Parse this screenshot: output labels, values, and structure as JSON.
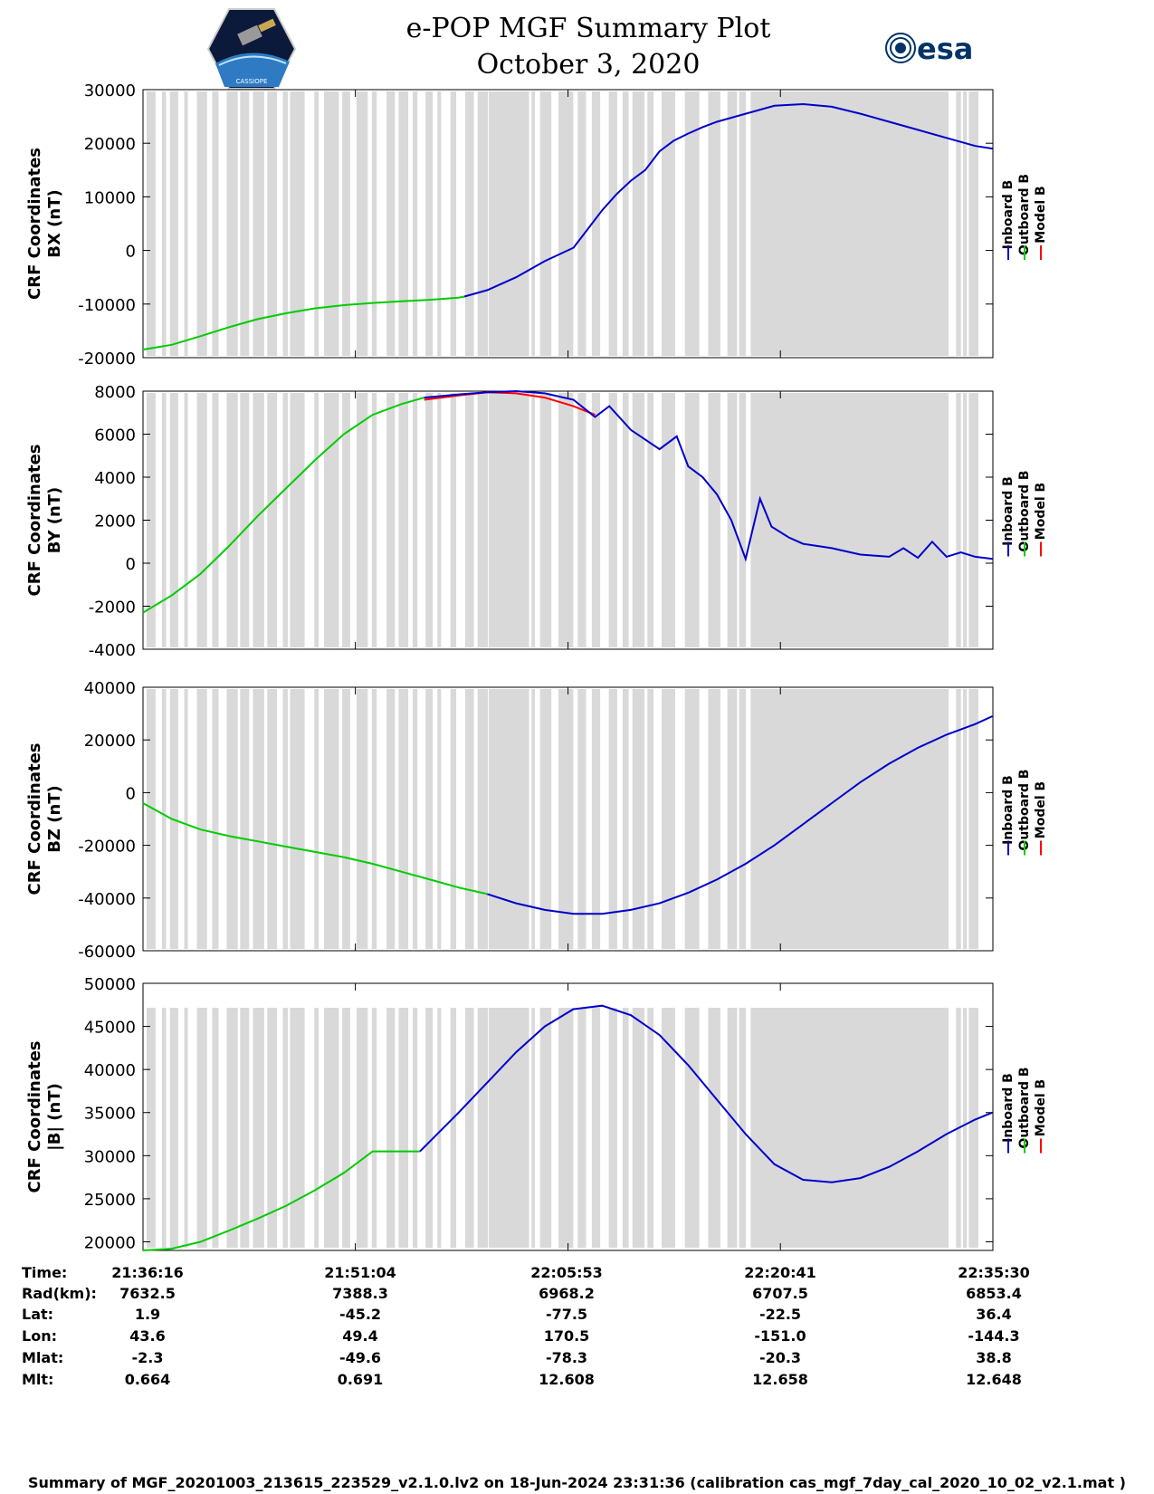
{
  "header": {
    "title_line1": "e-POP MGF Summary Plot",
    "title_line2": "October 3, 2020",
    "esa_logo_text": "esa",
    "cassiope_logo_text": "CASSIOPE"
  },
  "colors": {
    "inboard": "#0000cc",
    "outboard": "#00cc00",
    "model": "#ff0000",
    "gap_shading": "#d9d9d9"
  },
  "legend": [
    "Inboard B",
    "Outboard B",
    "Model B"
  ],
  "chart_data": [
    {
      "type": "line",
      "ylabel_line1": "CRF Coordinates",
      "ylabel_line2": "BX (nT)",
      "ylim": [
        -20000,
        30000
      ],
      "yticks": [
        -20000,
        -10000,
        0,
        10000,
        20000,
        30000
      ],
      "x_minutes": [
        0,
        2,
        4,
        6,
        8,
        10,
        12,
        14,
        16,
        18,
        20,
        22,
        24,
        26,
        28,
        30,
        32,
        34,
        36,
        38,
        40,
        42,
        44,
        46,
        48,
        50,
        52,
        54,
        56,
        58,
        59.2
      ],
      "series": [
        {
          "name": "Outboard B",
          "color_key": "outboard",
          "x": [
            0,
            2,
            4,
            6,
            8,
            10,
            12,
            14,
            16,
            18,
            20,
            22,
            22.4
          ],
          "values": [
            -18500,
            -17600,
            -16000,
            -14300,
            -12800,
            -11700,
            -10800,
            -10200,
            -9800,
            -9500,
            -9200,
            -8800,
            -8600
          ]
        },
        {
          "name": "Inboard B",
          "color_key": "inboard",
          "x": [
            22.4,
            24,
            26,
            28,
            30,
            31,
            32,
            33,
            34,
            35,
            36,
            37,
            38,
            39,
            40,
            42,
            44,
            46,
            48,
            50,
            52,
            54,
            56,
            58,
            59.2
          ],
          "values": [
            -8600,
            -7400,
            -5000,
            -2000,
            500,
            4000,
            7500,
            10500,
            13000,
            15000,
            18500,
            20500,
            21800,
            23000,
            24000,
            25500,
            27000,
            27300,
            26800,
            25500,
            24000,
            22500,
            21000,
            19500,
            19000
          ]
        }
      ]
    },
    {
      "type": "line",
      "ylabel_line1": "CRF Coordinates",
      "ylabel_line2": "BY (nT)",
      "ylim": [
        -4000,
        8000
      ],
      "yticks": [
        -4000,
        -2000,
        0,
        2000,
        4000,
        6000,
        8000
      ],
      "series": [
        {
          "name": "Outboard B",
          "color_key": "outboard",
          "x": [
            0,
            2,
            4,
            6,
            8,
            10,
            12,
            14,
            16,
            18,
            19.6
          ],
          "values": [
            -2300,
            -1500,
            -500,
            800,
            2200,
            3500,
            4800,
            6000,
            6900,
            7400,
            7700
          ]
        },
        {
          "name": "Model B",
          "color_key": "model",
          "x": [
            19.6,
            22,
            24,
            26,
            28,
            30,
            31.5
          ],
          "values": [
            7600,
            7800,
            7950,
            7900,
            7700,
            7300,
            6900
          ]
        },
        {
          "name": "Inboard B",
          "color_key": "inboard",
          "x": [
            19.6,
            22,
            24,
            26,
            28,
            30,
            31.5,
            32.5,
            34,
            36,
            37.2,
            38,
            39,
            40,
            41,
            42,
            43,
            43.8,
            45,
            46,
            48,
            50,
            52,
            53,
            54,
            55,
            56,
            57,
            58,
            59.2
          ],
          "values": [
            7700,
            7850,
            7950,
            8000,
            7900,
            7600,
            6800,
            7300,
            6200,
            5300,
            5900,
            4500,
            4000,
            3200,
            2000,
            200,
            3000,
            1700,
            1200,
            900,
            700,
            400,
            300,
            700,
            250,
            1000,
            300,
            500,
            300,
            200
          ]
        }
      ]
    },
    {
      "type": "line",
      "ylabel_line1": "CRF Coordinates",
      "ylabel_line2": "BZ (nT)",
      "ylim": [
        -60000,
        40000
      ],
      "yticks": [
        -60000,
        -40000,
        -20000,
        0,
        20000,
        40000
      ],
      "series": [
        {
          "name": "Outboard B",
          "color_key": "outboard",
          "x": [
            0,
            2,
            4,
            6,
            8,
            10,
            12,
            14,
            16,
            18,
            20,
            22,
            24
          ],
          "values": [
            -4000,
            -10000,
            -14000,
            -16500,
            -18500,
            -20500,
            -22500,
            -24500,
            -27000,
            -30000,
            -33000,
            -36000,
            -38500
          ]
        },
        {
          "name": "Inboard B",
          "color_key": "inboard",
          "x": [
            24,
            26,
            28,
            30,
            32,
            34,
            36,
            38,
            40,
            42,
            44,
            46,
            48,
            50,
            52,
            54,
            56,
            58,
            59.2
          ],
          "values": [
            -38500,
            -42000,
            -44500,
            -46000,
            -46000,
            -44500,
            -42000,
            -38000,
            -33000,
            -27000,
            -20000,
            -12000,
            -4000,
            4000,
            11000,
            17000,
            22000,
            26000,
            29000
          ]
        }
      ]
    },
    {
      "type": "line",
      "ylabel_line1": "CRF Coordinates",
      "ylabel_line2": "|B| (nT)",
      "ylim": [
        19000,
        50000
      ],
      "yticks": [
        20000,
        25000,
        30000,
        35000,
        40000,
        45000,
        50000
      ],
      "series": [
        {
          "name": "Outboard B",
          "color_key": "outboard",
          "x": [
            0,
            2,
            4,
            6,
            8,
            10,
            12,
            14,
            16,
            19.3
          ],
          "values": [
            19000,
            19200,
            20000,
            21300,
            22700,
            24200,
            26000,
            28000,
            30500,
            30500
          ]
        },
        {
          "name": "Inboard B",
          "color_key": "inboard",
          "x": [
            19.3,
            22,
            24,
            26,
            28,
            30,
            32,
            34,
            36,
            38,
            40,
            42,
            44,
            46,
            48,
            50,
            52,
            54,
            56,
            58,
            59.2
          ],
          "values": [
            30500,
            35000,
            38500,
            42000,
            45000,
            47000,
            47400,
            46300,
            44000,
            40500,
            36500,
            32500,
            29000,
            27200,
            26900,
            27400,
            28700,
            30500,
            32500,
            34200,
            35000
          ]
        }
      ]
    }
  ],
  "x_axis": {
    "xlim_minutes": [
      0,
      59.23
    ],
    "tick_minutes": [
      0,
      14.8,
      29.62,
      44.42,
      59.23
    ]
  },
  "footer": {
    "labels": [
      "Time:",
      "Rad(km):",
      "Lat:",
      "Lon:",
      "Mlat:",
      "Mlt:"
    ],
    "columns": [
      [
        "21:36:16",
        "7632.5",
        "1.9",
        "43.6",
        "-2.3",
        "0.664"
      ],
      [
        "21:51:04",
        "7388.3",
        "-45.2",
        "49.4",
        "-49.6",
        "0.691"
      ],
      [
        "22:05:53",
        "6968.2",
        "-77.5",
        "170.5",
        "-78.3",
        "12.608"
      ],
      [
        "22:20:41",
        "6707.5",
        "-22.5",
        "-151.0",
        "-20.3",
        "12.658"
      ],
      [
        "22:35:30",
        "6853.4",
        "36.4",
        "-144.3",
        "38.8",
        "12.648"
      ]
    ],
    "summary": "Summary of MGF_20201003_213615_223529_v2.1.0.lv2 on 18-Jun-2024 23:31:36 (calibration cas_mgf_7day_cal_2020_10_02_v2.1.mat )"
  }
}
